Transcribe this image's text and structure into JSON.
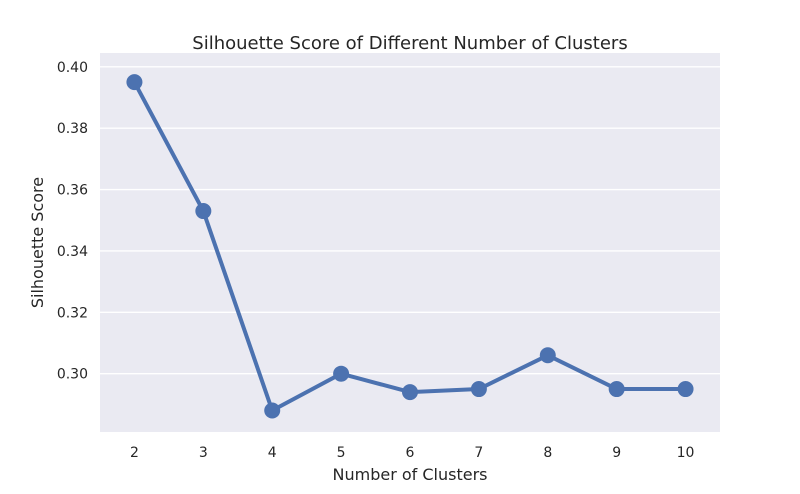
{
  "chart_data": {
    "type": "line",
    "title": "Silhouette Score of Different Number of Clusters",
    "xlabel": "Number of Clusters",
    "ylabel": "Silhouette Score",
    "x": [
      2,
      3,
      4,
      5,
      6,
      7,
      8,
      9,
      10
    ],
    "series": [
      {
        "values": [
          0.395,
          0.353,
          0.288,
          0.3,
          0.294,
          0.295,
          0.306,
          0.295,
          0.295
        ]
      }
    ],
    "xticks": [
      "2",
      "3",
      "4",
      "5",
      "6",
      "7",
      "8",
      "9",
      "10"
    ],
    "yticks": [
      "0.30",
      "0.32",
      "0.34",
      "0.36",
      "0.38",
      "0.40"
    ],
    "ylim": [
      0.281,
      0.4045
    ],
    "grid": true,
    "colors": {
      "line": "#4c72b0",
      "plot_background": "#eaeaf2",
      "grid": "#ffffff",
      "text": "#262626"
    }
  }
}
